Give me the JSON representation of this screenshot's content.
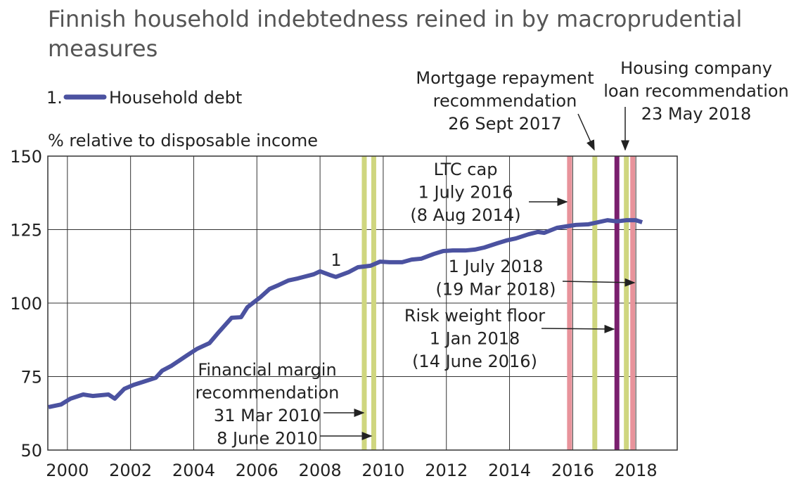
{
  "chart_data": {
    "type": "line",
    "title": "Finnish household indebtedness reined in by macroprudential measures",
    "y_label": "% relative to disposable income",
    "legend_prefix": "1.",
    "series": [
      {
        "name": "Household debt",
        "label": "1",
        "color": "#4b52a0",
        "x": [
          1999.4,
          1999.8,
          2000.1,
          2000.5,
          2000.8,
          2001.3,
          2001.5,
          2001.8,
          2002.1,
          2002.4,
          2002.8,
          2003.0,
          2003.3,
          2003.8,
          2004.1,
          2004.5,
          2004.8,
          2005.2,
          2005.5,
          2005.7,
          2006.1,
          2006.4,
          2006.7,
          2007.0,
          2007.3,
          2007.8,
          2008.0,
          2008.3,
          2008.5,
          2008.9,
          2009.2,
          2009.6,
          2009.9,
          2010.2,
          2010.6,
          2010.9,
          2011.2,
          2011.6,
          2011.9,
          2012.2,
          2012.6,
          2012.9,
          2013.2,
          2013.6,
          2013.9,
          2014.2,
          2014.6,
          2014.9,
          2015.1,
          2015.5,
          2015.8,
          2016.1,
          2016.5,
          2016.8,
          2017.1,
          2017.4,
          2017.7,
          2018.0,
          2018.2
        ],
        "values": [
          64.6,
          65.5,
          67.5,
          68.9,
          68.4,
          68.9,
          67.5,
          70.8,
          72.2,
          73.2,
          74.6,
          77.0,
          78.7,
          82.3,
          84.4,
          86.4,
          90.2,
          95.0,
          95.2,
          98.6,
          101.9,
          104.8,
          106.2,
          107.7,
          108.4,
          109.8,
          110.8,
          109.6,
          108.9,
          110.5,
          112.2,
          112.7,
          114.1,
          113.9,
          113.9,
          114.8,
          115.1,
          116.7,
          117.7,
          117.9,
          117.9,
          118.2,
          118.9,
          120.3,
          121.3,
          122.0,
          123.4,
          124.2,
          123.9,
          125.6,
          126.1,
          126.6,
          126.8,
          127.5,
          128.2,
          127.8,
          128.2,
          128.2,
          127.5
        ]
      }
    ],
    "markers": [
      {
        "x": 2009.4,
        "color": "#cfd67f"
      },
      {
        "x": 2009.7,
        "color": "#cfd67f"
      },
      {
        "x": 2015.9,
        "color": "#e8939b"
      },
      {
        "x": 2016.7,
        "color": "#cfd67f"
      },
      {
        "x": 2017.4,
        "color": "#7a1f6e"
      },
      {
        "x": 2017.7,
        "color": "#cfd67f"
      },
      {
        "x": 2017.9,
        "color": "#e8939b"
      }
    ],
    "annotations": [
      [
        "LTC cap",
        "1 July 2016",
        "(8 Aug 2014)"
      ],
      [
        "1 July 2018",
        "(19 Mar 2018)"
      ],
      [
        "Risk weight floor",
        "1 Jan 2018",
        "(14 June 2016)"
      ],
      [
        "Financial margin",
        "recommendation",
        "31 Mar 2010",
        "8 June 2010"
      ],
      [
        "Mortgage repayment",
        "recommendation",
        "26 Sept 2017"
      ],
      [
        "Housing company",
        "loan recommendation",
        "23 May 2018"
      ]
    ],
    "xlim": [
      1999.38,
      2019.31
    ],
    "xticks": [
      2000,
      2002,
      2004,
      2006,
      2008,
      2010,
      2012,
      2014,
      2016,
      2018
    ],
    "ylim": [
      50,
      150
    ],
    "yticks": [
      50,
      75,
      100,
      125,
      150
    ],
    "grid": true
  }
}
